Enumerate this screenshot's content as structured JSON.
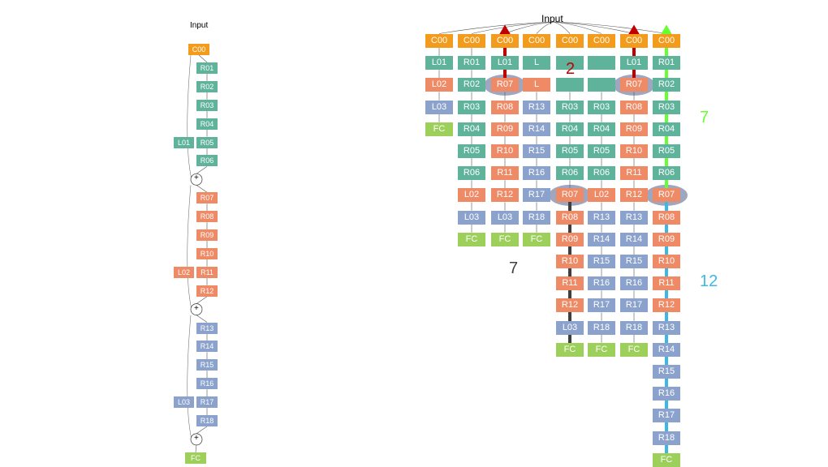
{
  "colors": {
    "C": "#f29b1c",
    "A": "#5fb39a",
    "B": "#ef8a66",
    "D": "#8ba2cc",
    "F": "#9dcf5b",
    "red_arrow": "#c00000",
    "green_arrow": "#66ff33",
    "dark_arrow": "#404040",
    "blue_arrow": "#3bb8e6",
    "highlight": "#4e5d8c"
  },
  "left_network": {
    "input_label": "Input",
    "column": [
      {
        "label": "C00",
        "color": "C"
      },
      {
        "label": "R01",
        "color": "A"
      },
      {
        "label": "R02",
        "color": "A"
      },
      {
        "label": "R03",
        "color": "A"
      },
      {
        "label": "R04",
        "color": "A"
      },
      {
        "label": "R05",
        "color": "A"
      },
      {
        "label": "R06",
        "color": "A"
      },
      {
        "label": "+",
        "color": "sum"
      },
      {
        "label": "R07",
        "color": "B"
      },
      {
        "label": "R08",
        "color": "B"
      },
      {
        "label": "R09",
        "color": "B"
      },
      {
        "label": "R10",
        "color": "B"
      },
      {
        "label": "R11",
        "color": "B"
      },
      {
        "label": "R12",
        "color": "B"
      },
      {
        "label": "+",
        "color": "sum"
      },
      {
        "label": "R13",
        "color": "D"
      },
      {
        "label": "R14",
        "color": "D"
      },
      {
        "label": "R15",
        "color": "D"
      },
      {
        "label": "R16",
        "color": "D"
      },
      {
        "label": "R17",
        "color": "D"
      },
      {
        "label": "R18",
        "color": "D"
      },
      {
        "label": "+",
        "color": "sum"
      },
      {
        "label": "FC",
        "color": "F"
      }
    ],
    "side_blocks": [
      {
        "label": "L01",
        "color": "A",
        "beside": "R05"
      },
      {
        "label": "L02",
        "color": "B",
        "beside": "R11"
      },
      {
        "label": "L03",
        "color": "D",
        "beside": "R17"
      }
    ]
  },
  "right_network": {
    "input_label": "Input",
    "columns": [
      [
        {
          "label": "C00",
          "color": "C"
        },
        {
          "label": "L01",
          "color": "A"
        },
        {
          "label": "L02",
          "color": "B"
        },
        {
          "label": "L03",
          "color": "D"
        },
        {
          "label": "FC",
          "color": "F"
        }
      ],
      [
        {
          "label": "C00",
          "color": "C"
        },
        {
          "label": "R01",
          "color": "A"
        },
        {
          "label": "R02",
          "color": "A"
        },
        {
          "label": "R03",
          "color": "A"
        },
        {
          "label": "R04",
          "color": "A"
        },
        {
          "label": "R05",
          "color": "A"
        },
        {
          "label": "R06",
          "color": "A"
        },
        {
          "label": "L02",
          "color": "B"
        },
        {
          "label": "L03",
          "color": "D"
        },
        {
          "label": "FC",
          "color": "F"
        }
      ],
      [
        {
          "label": "C00",
          "color": "C"
        },
        {
          "label": "L01",
          "color": "A"
        },
        {
          "label": "R07",
          "color": "B"
        },
        {
          "label": "R08",
          "color": "B"
        },
        {
          "label": "R09",
          "color": "B"
        },
        {
          "label": "R10",
          "color": "B"
        },
        {
          "label": "R11",
          "color": "B"
        },
        {
          "label": "R12",
          "color": "B"
        },
        {
          "label": "L03",
          "color": "D"
        },
        {
          "label": "FC",
          "color": "F"
        }
      ],
      [
        {
          "label": "C00",
          "color": "C"
        },
        {
          "label": "L",
          "color": "A"
        },
        {
          "label": "L",
          "color": "B"
        },
        {
          "label": "R13",
          "color": "D"
        },
        {
          "label": "R14",
          "color": "D"
        },
        {
          "label": "R15",
          "color": "D"
        },
        {
          "label": "R16",
          "color": "D"
        },
        {
          "label": "R17",
          "color": "D"
        },
        {
          "label": "R18",
          "color": "D"
        },
        {
          "label": "FC",
          "color": "F"
        }
      ],
      [
        {
          "label": "C00",
          "color": "C"
        },
        {
          "label": "",
          "color": "A"
        },
        {
          "label": "",
          "color": "A"
        },
        {
          "label": "R03",
          "color": "A"
        },
        {
          "label": "R04",
          "color": "A"
        },
        {
          "label": "R05",
          "color": "A"
        },
        {
          "label": "R06",
          "color": "A"
        },
        {
          "label": "R07",
          "color": "B"
        },
        {
          "label": "R08",
          "color": "B"
        },
        {
          "label": "R09",
          "color": "B"
        },
        {
          "label": "R10",
          "color": "B"
        },
        {
          "label": "R11",
          "color": "B"
        },
        {
          "label": "R12",
          "color": "B"
        },
        {
          "label": "L03",
          "color": "D"
        },
        {
          "label": "FC",
          "color": "F"
        }
      ],
      [
        {
          "label": "C00",
          "color": "C"
        },
        {
          "label": "",
          "color": "A"
        },
        {
          "label": "",
          "color": "A"
        },
        {
          "label": "R03",
          "color": "A"
        },
        {
          "label": "R04",
          "color": "A"
        },
        {
          "label": "R05",
          "color": "A"
        },
        {
          "label": "R06",
          "color": "A"
        },
        {
          "label": "L02",
          "color": "B"
        },
        {
          "label": "R13",
          "color": "D"
        },
        {
          "label": "R14",
          "color": "D"
        },
        {
          "label": "R15",
          "color": "D"
        },
        {
          "label": "R16",
          "color": "D"
        },
        {
          "label": "R17",
          "color": "D"
        },
        {
          "label": "R18",
          "color": "D"
        },
        {
          "label": "FC",
          "color": "F"
        }
      ],
      [
        {
          "label": "C00",
          "color": "C"
        },
        {
          "label": "L01",
          "color": "A"
        },
        {
          "label": "R07",
          "color": "B"
        },
        {
          "label": "R08",
          "color": "B"
        },
        {
          "label": "R09",
          "color": "B"
        },
        {
          "label": "R10",
          "color": "B"
        },
        {
          "label": "R11",
          "color": "B"
        },
        {
          "label": "R12",
          "color": "B"
        },
        {
          "label": "R13",
          "color": "D"
        },
        {
          "label": "R14",
          "color": "D"
        },
        {
          "label": "R15",
          "color": "D"
        },
        {
          "label": "R16",
          "color": "D"
        },
        {
          "label": "R17",
          "color": "D"
        },
        {
          "label": "R18",
          "color": "D"
        },
        {
          "label": "FC",
          "color": "F"
        }
      ],
      [
        {
          "label": "C00",
          "color": "C"
        },
        {
          "label": "R01",
          "color": "A"
        },
        {
          "label": "R02",
          "color": "A"
        },
        {
          "label": "R03",
          "color": "A"
        },
        {
          "label": "R04",
          "color": "A"
        },
        {
          "label": "R05",
          "color": "A"
        },
        {
          "label": "R06",
          "color": "A"
        },
        {
          "label": "R07",
          "color": "B"
        },
        {
          "label": "R08",
          "color": "B"
        },
        {
          "label": "R09",
          "color": "B"
        },
        {
          "label": "R10",
          "color": "B"
        },
        {
          "label": "R11",
          "color": "B"
        },
        {
          "label": "R12",
          "color": "B"
        },
        {
          "label": "R13",
          "color": "D"
        },
        {
          "label": "R14",
          "color": "D"
        },
        {
          "label": "R15",
          "color": "D"
        },
        {
          "label": "R16",
          "color": "D"
        },
        {
          "label": "R17",
          "color": "D"
        },
        {
          "label": "R18",
          "color": "D"
        },
        {
          "label": "FC",
          "color": "F"
        }
      ]
    ],
    "highlights": [
      {
        "column": 2,
        "row": 2
      },
      {
        "column": 6,
        "row": 2
      },
      {
        "column": 4,
        "row": 7
      },
      {
        "column": 7,
        "row": 7
      }
    ],
    "arrows": [
      {
        "column": 2,
        "from_row": 2,
        "to_row": 0,
        "color": "red_arrow",
        "direction": "up"
      },
      {
        "column": 6,
        "from_row": 2,
        "to_row": 0,
        "color": "red_arrow",
        "direction": "up"
      },
      {
        "column": 7,
        "from_row": 7,
        "to_row": 0,
        "color": "green_arrow",
        "direction": "up"
      },
      {
        "column": 4,
        "from_row": 7,
        "to_row": 14,
        "color": "dark_arrow",
        "direction": "down"
      },
      {
        "column": 7,
        "from_row": 7,
        "to_row": 19,
        "color": "blue_arrow",
        "direction": "down"
      }
    ],
    "annotations": [
      {
        "text": "2",
        "color": "red_arrow"
      },
      {
        "text": "7",
        "color": "green_arrow"
      },
      {
        "text": "7",
        "color": "dark_arrow"
      },
      {
        "text": "12",
        "color": "blue_arrow"
      }
    ]
  }
}
